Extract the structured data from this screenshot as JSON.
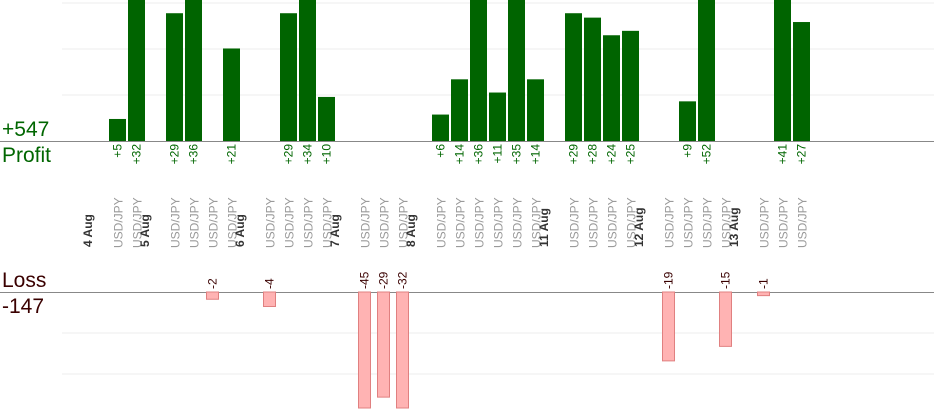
{
  "labels": {
    "profit_total": "+547",
    "profit": "Profit",
    "loss": "Loss",
    "loss_total": "-147"
  },
  "colors": {
    "profit_bar": "#006400",
    "profit_text": "#006600",
    "loss_bar_fill": "#ffb3b3",
    "loss_bar_stroke": "#e08080",
    "loss_text": "#3a0000",
    "category_text": "#9a9a9a",
    "date_text": "#333333",
    "grid": "#eeeeee",
    "axis": "#888888"
  },
  "chart_data": {
    "type": "bar",
    "title": "",
    "instrument": "USD/JPY",
    "days": [
      {
        "date": "4 Aug",
        "trades": [
          5,
          32
        ]
      },
      {
        "date": "5 Aug",
        "trades": [
          29,
          36,
          -2,
          21
        ]
      },
      {
        "date": "6 Aug",
        "trades": [
          -4,
          29,
          34,
          10
        ]
      },
      {
        "date": "7 Aug",
        "trades": [
          -45,
          -29,
          -32
        ]
      },
      {
        "date": "8 Aug",
        "trades": [
          6,
          14,
          36,
          11,
          35,
          14
        ]
      },
      {
        "date": "11 Aug",
        "trades": [
          29,
          28,
          24,
          25
        ]
      },
      {
        "date": "12 Aug",
        "trades": [
          -19,
          9,
          52,
          -15
        ]
      },
      {
        "date": "13 Aug",
        "trades": [
          -1,
          41,
          27
        ]
      }
    ],
    "totals": {
      "profit": 547,
      "loss": -147
    },
    "grid": true
  }
}
